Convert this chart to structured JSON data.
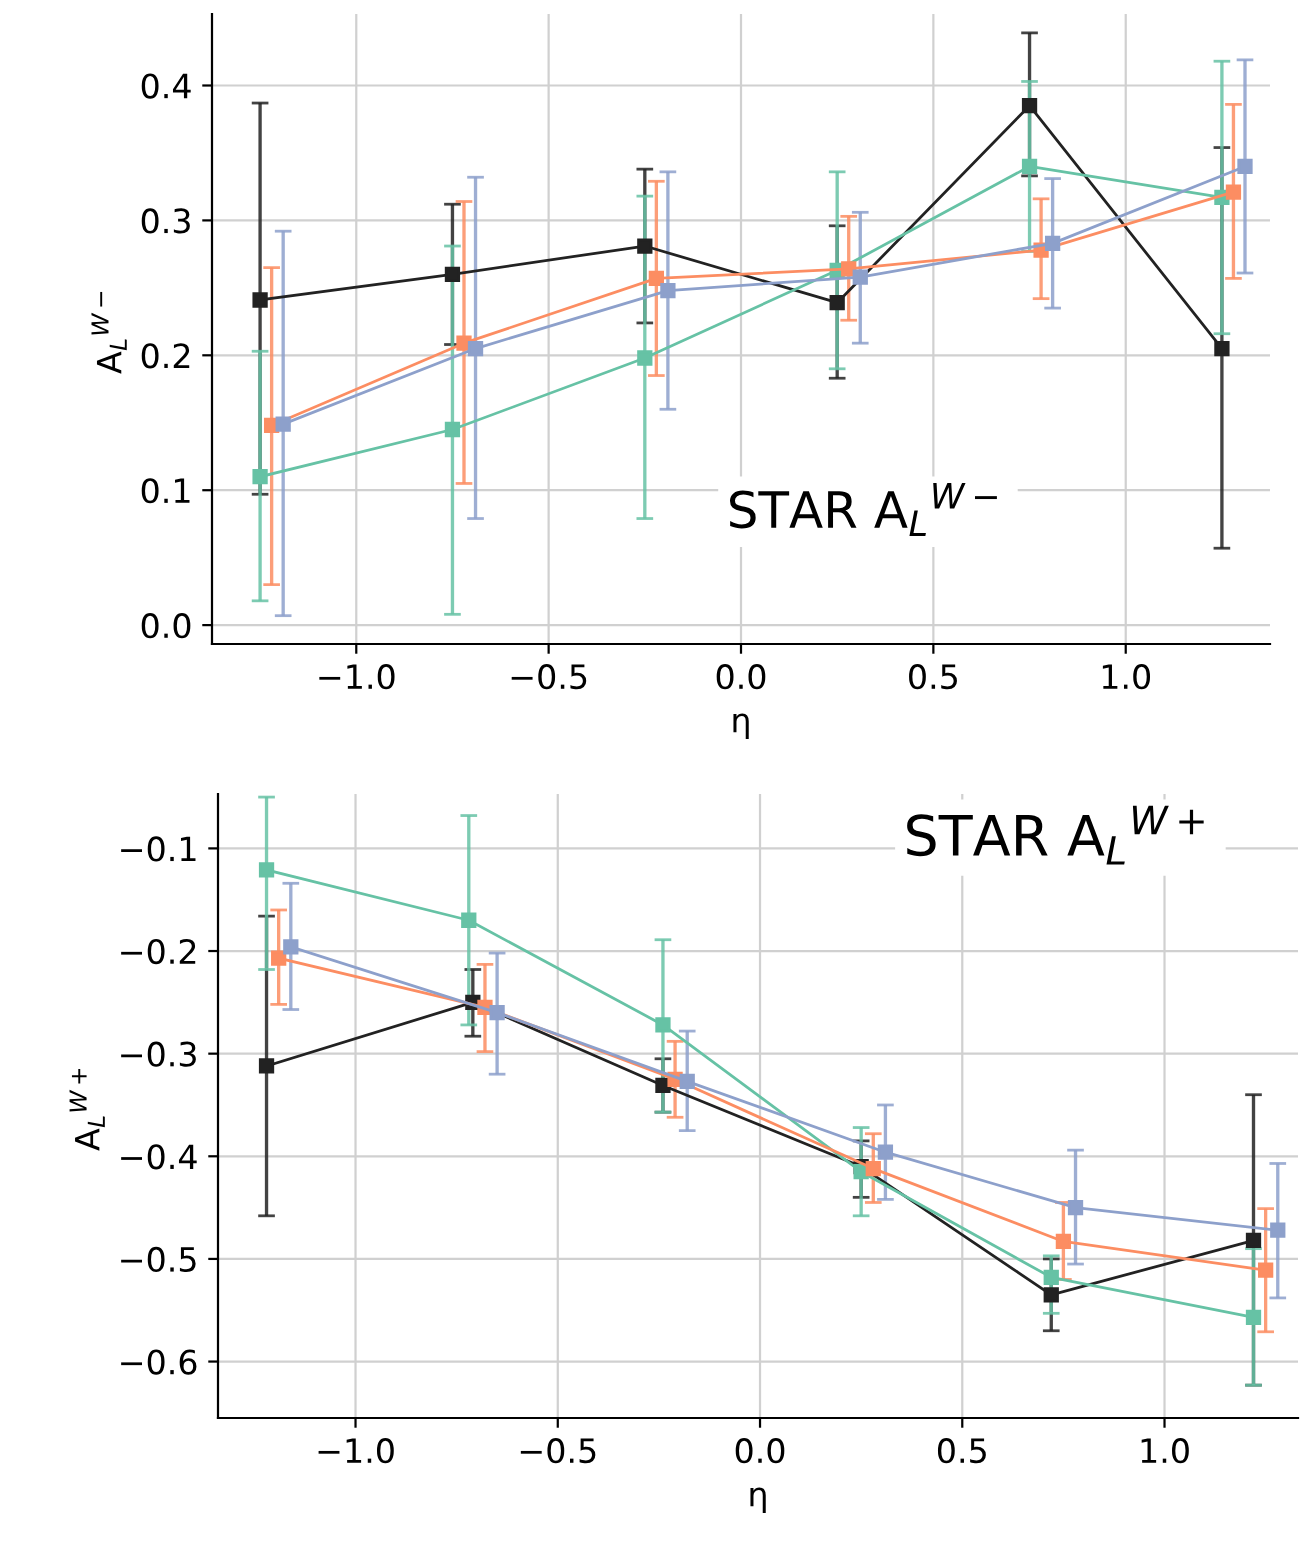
{
  "chart_data": [
    {
      "type": "line",
      "xlabel": "η",
      "ylabel": "A$_{L}$$^{W−}$",
      "annotations": [
        "STAR A$_{L}$$^{W−}$"
      ],
      "marker": "square",
      "line_style": "solid",
      "grid": true,
      "legend": false,
      "xlim": [
        -1.375,
        1.375
      ],
      "ylim": [
        -0.014,
        0.453
      ],
      "xticks": [
        {
          "value": -1.0,
          "label": "−1.0"
        },
        {
          "value": -0.5,
          "label": "−0.5"
        },
        {
          "value": 0.0,
          "label": "0.0"
        },
        {
          "value": 0.5,
          "label": "0.5"
        },
        {
          "value": 1.0,
          "label": "1.0"
        }
      ],
      "yticks": [
        {
          "value": 0.0,
          "label": "0.0"
        },
        0.1,
        0.2,
        0.3,
        0.4
      ],
      "series": [
        {
          "color": "#222222",
          "x": [
            -1.25,
            -0.75,
            -0.25,
            0.25,
            0.75,
            1.25
          ],
          "values": [
            0.241,
            0.26,
            0.281,
            0.239,
            0.385,
            0.205
          ],
          "errors": [
            [
              0.097,
              0.387
            ],
            [
              0.208,
              0.312
            ],
            [
              0.224,
              0.338
            ],
            [
              0.183,
              0.296
            ],
            [
              0.333,
              0.439
            ],
            [
              0.057,
              0.354
            ]
          ]
        },
        {
          "color": "#66c2a5",
          "x": [
            -1.25,
            -0.75,
            -0.25,
            0.25,
            0.75,
            1.25
          ],
          "values": [
            0.11,
            0.145,
            0.198,
            0.263,
            0.34,
            0.317
          ],
          "errors": [
            [
              0.018,
              0.203
            ],
            [
              0.008,
              0.281
            ],
            [
              0.079,
              0.318
            ],
            [
              0.19,
              0.336
            ],
            [
              0.277,
              0.403
            ],
            [
              0.216,
              0.418
            ]
          ]
        },
        {
          "color": "#fc8d62",
          "x": [
            -1.22,
            -0.72,
            -0.22,
            0.28,
            0.78,
            1.28
          ],
          "values": [
            0.148,
            0.209,
            0.257,
            0.264,
            0.278,
            0.321
          ],
          "errors": [
            [
              0.03,
              0.265
            ],
            [
              0.105,
              0.314
            ],
            [
              0.185,
              0.329
            ],
            [
              0.226,
              0.303
            ],
            [
              0.242,
              0.316
            ],
            [
              0.257,
              0.386
            ]
          ]
        },
        {
          "color": "#8da0cb",
          "x": [
            -1.19,
            -0.69,
            -0.19,
            0.31,
            0.81,
            1.31
          ],
          "values": [
            0.149,
            0.205,
            0.248,
            0.258,
            0.283,
            0.34
          ],
          "errors": [
            [
              0.007,
              0.292
            ],
            [
              0.079,
              0.332
            ],
            [
              0.16,
              0.336
            ],
            [
              0.209,
              0.306
            ],
            [
              0.235,
              0.331
            ],
            [
              0.261,
              0.419
            ]
          ]
        }
      ]
    },
    {
      "type": "line",
      "xlabel": "η",
      "ylabel": "A$_{L}$$^{W+}$",
      "annotations": [
        "STAR A$_{L}$$^{W+}$"
      ],
      "marker": "square",
      "line_style": "solid",
      "grid": true,
      "legend": false,
      "xlim": [
        -1.34,
        1.33
      ],
      "ylim": [
        -0.655,
        -0.047
      ],
      "xticks": [
        {
          "value": -1.0,
          "label": "−1.0"
        },
        {
          "value": -0.5,
          "label": "−0.5"
        },
        {
          "value": 0.0,
          "label": "0.0"
        },
        {
          "value": 0.5,
          "label": "0.5"
        },
        {
          "value": 1.0,
          "label": "1.0"
        }
      ],
      "yticks": [
        {
          "value": -0.6,
          "label": "−0.6"
        },
        {
          "value": -0.5,
          "label": "−0.5"
        },
        {
          "value": -0.4,
          "label": "−0.4"
        },
        {
          "value": -0.3,
          "label": "−0.3"
        },
        {
          "value": -0.2,
          "label": "−0.2"
        },
        {
          "value": -0.1,
          "label": "−0.1"
        }
      ],
      "series": [
        {
          "color": "#222222",
          "x": [
            -1.22,
            -0.71,
            -0.24,
            0.25,
            0.72,
            1.22
          ],
          "values": [
            -0.312,
            -0.25,
            -0.331,
            -0.41,
            -0.535,
            -0.482
          ],
          "errors": [
            [
              -0.458,
              -0.166
            ],
            [
              -0.283,
              -0.218
            ],
            [
              -0.357,
              -0.305
            ],
            [
              -0.44,
              -0.385
            ],
            [
              -0.57,
              -0.5
            ],
            [
              -0.623,
              -0.34
            ]
          ]
        },
        {
          "color": "#66c2a5",
          "x": [
            -1.22,
            -0.72,
            -0.24,
            0.25,
            0.72,
            1.22
          ],
          "values": [
            -0.121,
            -0.17,
            -0.272,
            -0.415,
            -0.518,
            -0.557
          ],
          "errors": [
            [
              -0.218,
              -0.05
            ],
            [
              -0.272,
              -0.068
            ],
            [
              -0.357,
              -0.189
            ],
            [
              -0.458,
              -0.372
            ],
            [
              -0.553,
              -0.497
            ],
            [
              -0.623,
              -0.49
            ]
          ]
        },
        {
          "color": "#fc8d62",
          "x": [
            -1.19,
            -0.68,
            -0.21,
            0.28,
            0.75,
            1.25
          ],
          "values": [
            -0.207,
            -0.255,
            -0.325,
            -0.412,
            -0.483,
            -0.511
          ],
          "errors": [
            [
              -0.252,
              -0.16
            ],
            [
              -0.298,
              -0.213
            ],
            [
              -0.362,
              -0.288
            ],
            [
              -0.445,
              -0.378
            ],
            [
              -0.52,
              -0.445
            ],
            [
              -0.571,
              -0.451
            ]
          ]
        },
        {
          "color": "#8da0cb",
          "x": [
            -1.16,
            -0.65,
            -0.18,
            0.31,
            0.78,
            1.28
          ],
          "values": [
            -0.196,
            -0.26,
            -0.327,
            -0.396,
            -0.45,
            -0.472
          ],
          "errors": [
            [
              -0.257,
              -0.134
            ],
            [
              -0.32,
              -0.202
            ],
            [
              -0.375,
              -0.278
            ],
            [
              -0.442,
              -0.35
            ],
            [
              -0.505,
              -0.394
            ],
            [
              -0.538,
              -0.407
            ]
          ]
        }
      ]
    }
  ]
}
